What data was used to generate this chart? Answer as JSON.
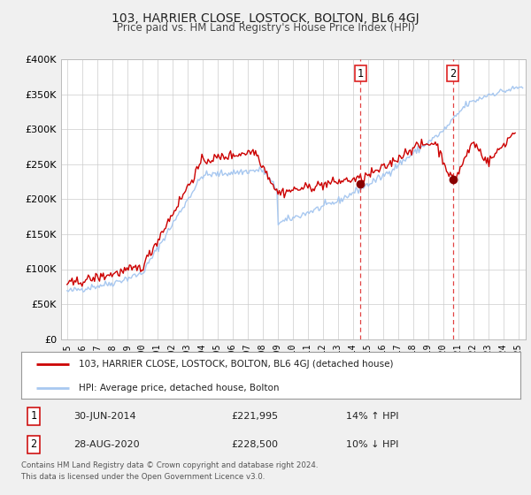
{
  "title": "103, HARRIER CLOSE, LOSTOCK, BOLTON, BL6 4GJ",
  "subtitle": "Price paid vs. HM Land Registry's House Price Index (HPI)",
  "ylim": [
    0,
    400000
  ],
  "yticks": [
    0,
    50000,
    100000,
    150000,
    200000,
    250000,
    300000,
    350000,
    400000
  ],
  "ytick_labels": [
    "£0",
    "£50K",
    "£100K",
    "£150K",
    "£200K",
    "£250K",
    "£300K",
    "£350K",
    "£400K"
  ],
  "xlim_start": 1994.6,
  "xlim_end": 2025.5,
  "sale1_x": 2014.5,
  "sale1_y": 221995,
  "sale2_x": 2020.67,
  "sale2_y": 228500,
  "sale1_date": "30-JUN-2014",
  "sale1_price": "£221,995",
  "sale1_hpi": "14% ↑ HPI",
  "sale2_date": "28-AUG-2020",
  "sale2_price": "£228,500",
  "sale2_hpi": "10% ↓ HPI",
  "line_color_house": "#cc0000",
  "line_color_hpi": "#a8c8f0",
  "marker_color": "#880000",
  "vline_color": "#dd2222",
  "background_color": "#f0f0f0",
  "plot_bg_color": "#ffffff",
  "grid_color": "#cccccc",
  "legend_label_house": "103, HARRIER CLOSE, LOSTOCK, BOLTON, BL6 4GJ (detached house)",
  "legend_label_hpi": "HPI: Average price, detached house, Bolton",
  "footer1": "Contains HM Land Registry data © Crown copyright and database right 2024.",
  "footer2": "This data is licensed under the Open Government Licence v3.0."
}
